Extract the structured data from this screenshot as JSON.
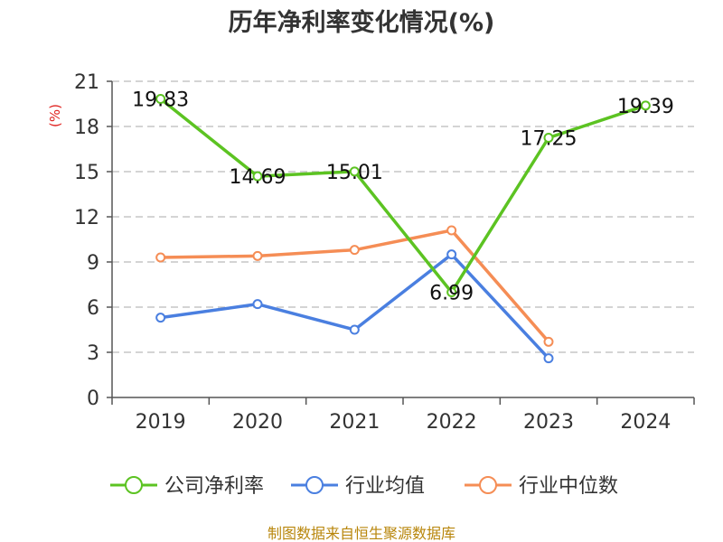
{
  "chart_data": {
    "type": "line",
    "title": "历年净利率变化情况(%)",
    "unit_label": "(%)",
    "categories": [
      "2019",
      "2020",
      "2021",
      "2022",
      "2023",
      "2024"
    ],
    "ylim": [
      0,
      21
    ],
    "yticks": [
      0,
      3,
      6,
      9,
      12,
      15,
      18,
      21
    ],
    "grid": true,
    "legend_position": "bottom",
    "series": [
      {
        "name": "公司净利率",
        "color": "#5cc322",
        "values": [
          19.83,
          14.69,
          15.01,
          6.99,
          17.25,
          19.39
        ],
        "labels": [
          "19.83",
          "14.69",
          "15.01",
          "6.99",
          "17.25",
          "19.39"
        ]
      },
      {
        "name": "行业均值",
        "color": "#4a7fe0",
        "values": [
          5.3,
          6.2,
          4.5,
          9.5,
          2.6,
          null
        ]
      },
      {
        "name": "行业中位数",
        "color": "#f58d55",
        "values": [
          9.3,
          9.4,
          9.8,
          11.1,
          3.7,
          null
        ]
      }
    ],
    "source": "制图数据来自恒生聚源数据库"
  }
}
